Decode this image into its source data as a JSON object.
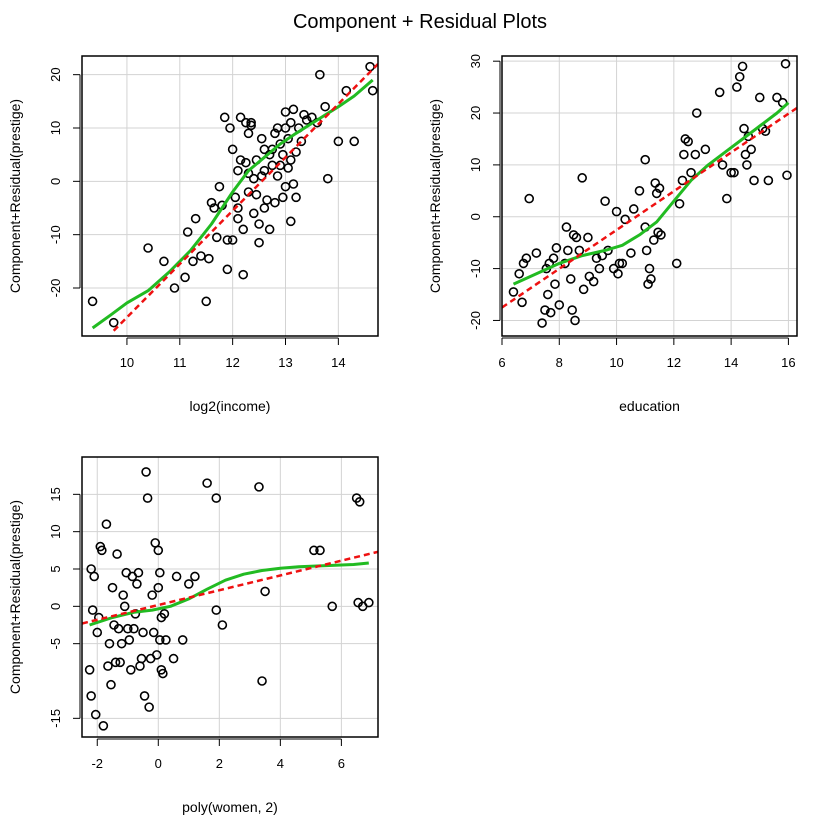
{
  "figure": {
    "title": "Component + Residual Plots"
  },
  "colors": {
    "points": "#000000",
    "smooth": "#22bb22",
    "fit": "#ee1111",
    "grid": "#d3d3d3"
  },
  "chart_data": [
    {
      "type": "scatter",
      "title": "",
      "xlabel": "log2(income)",
      "ylabel": "Component+Residual(prestige)",
      "xlim": [
        9.15,
        14.75
      ],
      "ylim": [
        -29,
        23.5
      ],
      "xticks": [
        10,
        11,
        12,
        13,
        14
      ],
      "yticks": [
        -20,
        -10,
        0,
        10,
        20
      ],
      "ytick_labels": [
        "-20",
        "-10",
        "0",
        "10",
        "20"
      ],
      "grid": true,
      "x": [
        9.35,
        9.75,
        10.4,
        10.7,
        10.9,
        11.1,
        11.15,
        11.25,
        11.3,
        11.4,
        11.5,
        11.55,
        11.6,
        11.65,
        11.7,
        11.75,
        11.8,
        11.85,
        11.9,
        11.9,
        11.95,
        12.0,
        12.0,
        12.05,
        12.1,
        12.1,
        12.1,
        12.15,
        12.15,
        12.2,
        12.2,
        12.25,
        12.25,
        12.3,
        12.3,
        12.3,
        12.35,
        12.35,
        12.4,
        12.4,
        12.45,
        12.45,
        12.5,
        12.5,
        12.55,
        12.55,
        12.6,
        12.6,
        12.6,
        12.65,
        12.7,
        12.7,
        12.75,
        12.75,
        12.8,
        12.8,
        12.85,
        12.85,
        12.9,
        12.9,
        12.95,
        12.95,
        13.0,
        13.0,
        13.0,
        13.05,
        13.05,
        13.1,
        13.1,
        13.1,
        13.15,
        13.15,
        13.2,
        13.2,
        13.25,
        13.3,
        13.35,
        13.4,
        13.5,
        13.6,
        13.65,
        13.75,
        13.8,
        14.0,
        14.15,
        14.3,
        14.6,
        14.65
      ],
      "y": [
        -22.5,
        -26.5,
        -12.5,
        -15,
        -20,
        -18,
        -9.5,
        -15,
        -7,
        -14,
        -22.5,
        -14.5,
        -4,
        -5,
        -10.5,
        -1,
        -4.5,
        12,
        -16.5,
        -11,
        10,
        6,
        -11,
        -3,
        -7,
        -5,
        2,
        4,
        12,
        -9,
        -17.5,
        3.5,
        11,
        -2,
        1.5,
        9,
        10.5,
        11,
        -6,
        0.5,
        -2.5,
        4,
        -8,
        -11.5,
        1,
        8,
        -5,
        2,
        6,
        -3.5,
        -9,
        5,
        6,
        3,
        9,
        -4,
        1,
        10,
        3,
        7,
        -3,
        5,
        13,
        10,
        -1,
        2.5,
        8,
        -7.5,
        4,
        11,
        -0.5,
        13.5,
        -3,
        5.5,
        10,
        7.5,
        12.5,
        11.5,
        12,
        11,
        20,
        14,
        0.5,
        7.5,
        17,
        7.5,
        21.5,
        17
      ],
      "series": [
        {
          "kind": "smooth",
          "x": [
            9.35,
            9.7,
            10.0,
            10.4,
            10.8,
            11.2,
            11.6,
            12.0,
            12.3,
            12.6,
            12.9,
            13.2,
            13.6,
            14.0,
            14.3,
            14.65
          ],
          "y": [
            -27.5,
            -25,
            -22.8,
            -20.5,
            -17,
            -13,
            -8,
            -2,
            2,
            4.5,
            7,
            9,
            11.5,
            14,
            16,
            19
          ]
        },
        {
          "kind": "fit",
          "x": [
            9.75,
            14.75
          ],
          "y": [
            -28,
            22
          ]
        }
      ]
    },
    {
      "type": "scatter",
      "title": "",
      "xlabel": "education",
      "ylabel": "Component+Residual(prestige)",
      "xlim": [
        6.0,
        16.3
      ],
      "ylim": [
        -23,
        31
      ],
      "xticks": [
        6,
        8,
        10,
        12,
        14,
        16
      ],
      "yticks": [
        -20,
        -10,
        0,
        10,
        20,
        30
      ],
      "ytick_labels": [
        "-20",
        "-10",
        "0",
        "10",
        "20",
        "30"
      ],
      "grid": true,
      "x": [
        6.4,
        6.6,
        6.7,
        6.75,
        6.85,
        6.95,
        7.2,
        7.4,
        7.5,
        7.55,
        7.6,
        7.65,
        7.7,
        7.8,
        7.85,
        7.9,
        8.0,
        8.2,
        8.25,
        8.3,
        8.4,
        8.45,
        8.5,
        8.55,
        8.6,
        8.7,
        8.8,
        8.85,
        9.0,
        9.05,
        9.2,
        9.3,
        9.4,
        9.5,
        9.6,
        9.7,
        9.9,
        10.0,
        10.05,
        10.1,
        10.2,
        10.3,
        10.5,
        10.6,
        10.8,
        11.0,
        11.0,
        11.05,
        11.1,
        11.15,
        11.2,
        11.3,
        11.35,
        11.4,
        11.45,
        11.5,
        11.55,
        12.1,
        12.2,
        12.3,
        12.35,
        12.4,
        12.5,
        12.6,
        12.75,
        12.8,
        13.1,
        13.6,
        13.7,
        13.85,
        14.0,
        14.1,
        14.2,
        14.3,
        14.4,
        14.45,
        14.5,
        14.55,
        14.6,
        14.7,
        14.8,
        15.0,
        15.1,
        15.2,
        15.3,
        15.6,
        15.8,
        15.9,
        15.95
      ],
      "y": [
        -14.5,
        -11,
        -16.5,
        -9,
        -8,
        3.5,
        -7,
        -20.5,
        -18,
        -10,
        -15,
        -9,
        -18.5,
        -8,
        -13,
        -6,
        -17,
        -9,
        -2,
        -6.5,
        -12,
        -18,
        -3.5,
        -20,
        -4,
        -6.5,
        7.5,
        -14,
        -4,
        -11.5,
        -12.5,
        -8,
        -10,
        -7.5,
        3,
        -6.5,
        -10,
        1,
        -11,
        -9,
        -9,
        -0.5,
        -7,
        1.5,
        5,
        -2,
        11,
        -6.5,
        -13,
        -10,
        -12,
        -4.5,
        6.5,
        4.5,
        -3,
        5.5,
        -3.5,
        -9,
        2.5,
        7,
        12,
        15,
        14.5,
        8.5,
        12,
        20,
        13,
        24,
        10,
        3.5,
        8.5,
        8.5,
        25,
        27,
        29,
        17,
        12,
        10,
        15.5,
        13,
        7,
        23,
        17,
        16.5,
        7,
        23,
        22,
        29.5,
        8
      ],
      "series": [
        {
          "kind": "smooth",
          "x": [
            6.4,
            7.2,
            8.0,
            8.8,
            9.6,
            10.2,
            10.8,
            11.4,
            12.0,
            12.6,
            13.2,
            13.8,
            14.4,
            15.0,
            15.6,
            16.0
          ],
          "y": [
            -13,
            -11,
            -9,
            -7.5,
            -6.5,
            -5.5,
            -3.5,
            -1,
            3,
            7,
            10,
            12.5,
            15,
            17.5,
            20,
            22
          ]
        },
        {
          "kind": "fit",
          "x": [
            6.0,
            16.3
          ],
          "y": [
            -17.5,
            21
          ]
        }
      ]
    },
    {
      "type": "scatter",
      "title": "",
      "xlabel": "poly(women, 2)",
      "ylabel": "Component+Residual(prestige)",
      "xlim": [
        -2.5,
        7.2
      ],
      "ylim": [
        -17.5,
        20
      ],
      "xticks": [
        -2,
        0,
        2,
        4,
        6
      ],
      "xtick_labels": [
        "-2",
        "0",
        "2",
        "4",
        "6"
      ],
      "yticks": [
        -15,
        -5,
        0,
        5,
        10,
        15
      ],
      "ytick_labels": [
        "-15",
        "-5",
        "0",
        "5",
        "10",
        "15"
      ],
      "grid": true,
      "x": [
        -2.25,
        -2.2,
        -2.2,
        -2.15,
        -2.1,
        -2.05,
        -2.0,
        -1.95,
        -1.9,
        -1.85,
        -1.8,
        -1.7,
        -1.65,
        -1.6,
        -1.55,
        -1.5,
        -1.45,
        -1.4,
        -1.35,
        -1.3,
        -1.25,
        -1.2,
        -1.15,
        -1.1,
        -1.05,
        -1.0,
        -0.95,
        -0.9,
        -0.85,
        -0.8,
        -0.75,
        -0.7,
        -0.65,
        -0.6,
        -0.55,
        -0.5,
        -0.45,
        -0.4,
        -0.35,
        -0.3,
        -0.25,
        -0.2,
        -0.15,
        -0.1,
        -0.05,
        0.0,
        0.0,
        0.05,
        0.05,
        0.1,
        0.1,
        0.15,
        0.2,
        0.25,
        0.5,
        0.6,
        0.8,
        1.0,
        1.2,
        1.6,
        1.9,
        1.9,
        2.1,
        3.3,
        3.4,
        3.5,
        5.1,
        5.3,
        5.7,
        6.5,
        6.55,
        6.6,
        6.7,
        6.9
      ],
      "y": [
        -8.5,
        -12,
        5,
        -0.5,
        4,
        -14.5,
        -3.5,
        -1.5,
        8,
        7.5,
        -16,
        11,
        -8,
        -5,
        -10.5,
        2.5,
        -2.5,
        -7.5,
        7,
        -3,
        -7.5,
        -5,
        1.5,
        0,
        4.5,
        -3,
        -4.5,
        -8.5,
        4,
        -3,
        -1,
        3,
        4.5,
        -8,
        -7,
        -3.5,
        -12,
        18,
        14.5,
        -13.5,
        -7,
        1.5,
        -3.5,
        8.5,
        -6.5,
        7.5,
        2.5,
        -4.5,
        4.5,
        -1.5,
        -8.5,
        -9,
        -1,
        -4.5,
        -7,
        4,
        -4.5,
        3,
        4,
        16.5,
        14.5,
        -0.5,
        -2.5,
        16,
        -10,
        2,
        7.5,
        7.5,
        0,
        14.5,
        0.5,
        14,
        0,
        0.5
      ],
      "series": [
        {
          "kind": "smooth",
          "x": [
            -2.25,
            -1.5,
            -0.8,
            -0.2,
            0.4,
            1.0,
            1.6,
            2.2,
            2.8,
            3.4,
            4.0,
            4.6,
            5.2,
            5.8,
            6.4,
            6.9
          ],
          "y": [
            -2.5,
            -1.5,
            -0.8,
            -0.5,
            0,
            1,
            2.3,
            3.5,
            4.3,
            4.8,
            5.1,
            5.3,
            5.4,
            5.5,
            5.6,
            5.8
          ]
        },
        {
          "kind": "fit",
          "x": [
            -2.5,
            7.2
          ],
          "y": [
            -2.3,
            7.3
          ]
        }
      ]
    }
  ]
}
